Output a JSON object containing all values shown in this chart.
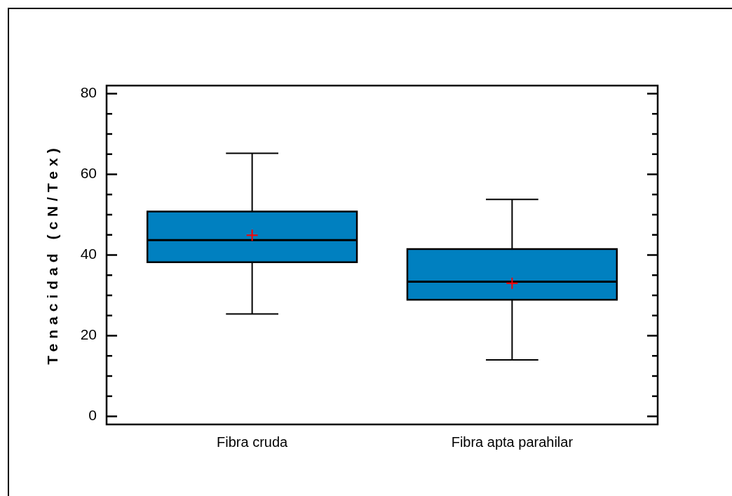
{
  "chart_data": {
    "type": "box",
    "ylabel": "Tenacidad (cN/Tex)",
    "categories": [
      "Fibra cruda",
      "Fibra apta parahilar"
    ],
    "color": "#0080c0",
    "boxes": [
      {
        "low": 25.4,
        "q1": 38.2,
        "median": 43.7,
        "q3": 50.8,
        "high": 65.2,
        "mean": 44.9
      },
      {
        "low": 14.0,
        "q1": 28.9,
        "median": 33.4,
        "q3": 41.5,
        "high": 53.8,
        "mean": 33.0
      }
    ],
    "ylim": [
      -2,
      82
    ],
    "yticks": [
      0,
      {
        "value": 5,
        "label": null
      },
      {
        "value": 10,
        "label": null
      },
      {
        "value": 15,
        "label": null
      },
      20,
      {
        "value": 25,
        "label": null
      },
      {
        "value": 30,
        "label": null
      },
      {
        "value": 35,
        "label": null
      },
      40,
      {
        "value": 45,
        "label": null
      },
      {
        "value": 50,
        "label": null
      },
      {
        "value": 55,
        "label": null
      },
      60,
      {
        "value": 65,
        "label": null
      },
      {
        "value": 70,
        "label": null
      },
      {
        "value": 75,
        "label": null
      },
      80
    ]
  }
}
